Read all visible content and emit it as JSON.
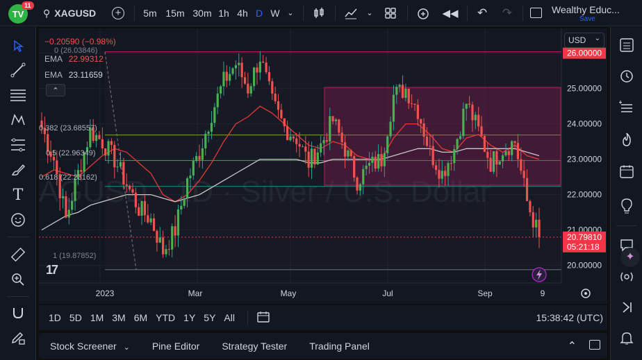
{
  "topbar": {
    "notification_count": "11",
    "symbol": "XAGUSD",
    "intervals": [
      "5m",
      "15m",
      "30m",
      "1h",
      "4h",
      "D",
      "W"
    ],
    "active_interval": "D",
    "layout_name": "Wealthy Educ...",
    "save_label": "Save"
  },
  "legend": {
    "change": "−0.20590 (−0.98%)",
    "ema1_label": "EMA",
    "ema1_value": "22.99312",
    "ema2_label": "EMA",
    "ema2_value": "23.11659"
  },
  "fib": {
    "level_0": "0 (26.03846)",
    "level_0382": "0.382 (23.68557)",
    "level_05": "0.5 (22.96349)",
    "level_0618": "0.618 (22.23162)",
    "level_1": "1 (19.87852)"
  },
  "price_axis": {
    "currency": "USD",
    "ticks": [
      "26.00000",
      "25.00000",
      "24.00000",
      "23.00000",
      "22.00000",
      "21.00000",
      "20.00000"
    ],
    "highlight_price": "26.00000",
    "last_price": "20.79810",
    "countdown": "05:21:18"
  },
  "time_axis": {
    "ticks": [
      "2023",
      "Mar",
      "May",
      "Jul",
      "Sep",
      "9"
    ]
  },
  "watermark": "XAGUSD · 1D · Silver / U.S. Dollar",
  "ranges": [
    "1D",
    "5D",
    "1M",
    "3M",
    "6M",
    "YTD",
    "1Y",
    "5Y",
    "All"
  ],
  "clock": "15:38:42 (UTC)",
  "panels": [
    "Stock Screener",
    "Pine Editor",
    "Strategy Tester",
    "Trading Panel"
  ],
  "colors": {
    "up": "#26a69a",
    "down": "#ef5350",
    "accent": "#2962ff",
    "ema_red": "#e53935",
    "ema_white": "#c9c9c9",
    "price_tag": "#f23645"
  },
  "chart_data": {
    "type": "candlestick",
    "symbol": "XAGUSD",
    "ylim": [
      19.5,
      26.7
    ],
    "x_labels": [
      "2023",
      "Mar",
      "May",
      "Jul",
      "Sep",
      "9"
    ],
    "close_series": [
      23.9,
      23.0,
      21.3,
      22.6,
      23.8,
      23.5,
      23.0,
      22.3,
      21.6,
      21.3,
      20.4,
      21.0,
      22.4,
      23.2,
      24.3,
      25.2,
      25.7,
      25.0,
      25.9,
      24.6,
      23.9,
      23.6,
      22.9,
      23.4,
      24.1,
      23.3,
      22.4,
      22.8,
      23.0,
      24.8,
      25.0,
      24.4,
      23.2,
      22.6,
      23.3,
      24.6,
      23.8,
      22.9,
      23.3,
      23.5,
      21.8,
      20.8
    ],
    "last_price": 20.7981,
    "fib_levels": [
      {
        "ratio": 0,
        "price": 26.03846
      },
      {
        "ratio": 0.382,
        "price": 23.68557
      },
      {
        "ratio": 0.5,
        "price": 22.96349
      },
      {
        "ratio": 0.618,
        "price": 22.23162
      },
      {
        "ratio": 1,
        "price": 19.87852
      }
    ],
    "ema_fast": [
      22.5,
      22.7,
      22.6,
      22.5,
      22.8,
      23.1,
      23.3,
      23.2,
      22.9,
      22.6,
      22.0,
      21.8,
      22.0,
      22.4,
      22.9,
      23.5,
      24.0,
      24.2,
      24.5,
      24.3,
      24.0,
      23.7,
      23.4,
      23.3,
      23.5,
      23.4,
      23.1,
      23.0,
      23.0,
      23.6,
      24.0,
      24.0,
      23.7,
      23.3,
      23.2,
      23.6,
      23.7,
      23.4,
      23.2,
      23.4,
      23.1,
      23.0
    ],
    "ema_slow": [
      21.0,
      21.2,
      21.4,
      21.5,
      21.7,
      21.8,
      21.9,
      22.0,
      22.0,
      22.0,
      21.9,
      21.8,
      21.9,
      22.0,
      22.2,
      22.4,
      22.6,
      22.8,
      23.0,
      23.0,
      23.0,
      23.0,
      22.9,
      22.9,
      23.0,
      23.0,
      23.0,
      23.0,
      23.0,
      23.1,
      23.2,
      23.3,
      23.3,
      23.2,
      23.2,
      23.3,
      23.3,
      23.3,
      23.3,
      23.3,
      23.2,
      23.1
    ]
  }
}
